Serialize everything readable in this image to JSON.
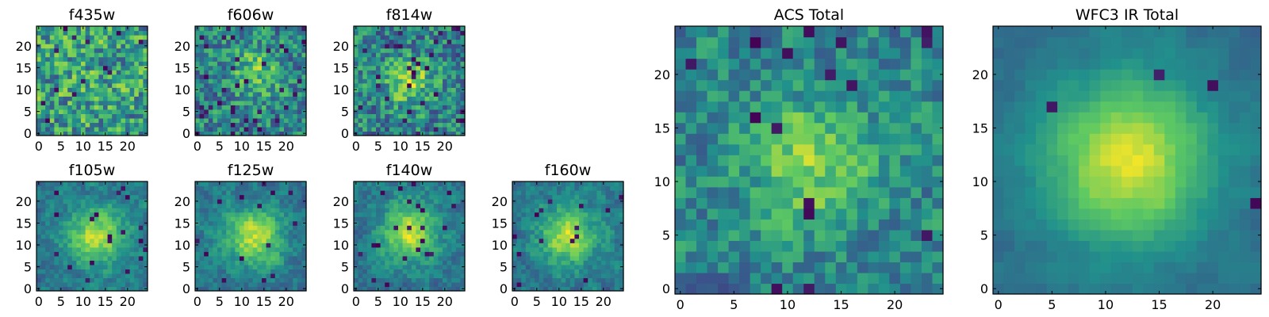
{
  "colormap": [
    "#440154",
    "#3b528b",
    "#21918c",
    "#5ec962",
    "#fde725"
  ],
  "chart_data": [
    {
      "type": "heatmap",
      "title": "f435w",
      "grid_size": 25,
      "seed": 11,
      "peak": [
        12,
        12
      ],
      "peak_strength": 0.05,
      "sigma": 5,
      "noise": 0.55,
      "base": 0.55,
      "outlier_rate": 0.03,
      "xticks": [
        {
          "value": 0,
          "label": "0"
        },
        {
          "value": 5,
          "label": "5"
        },
        {
          "value": 10,
          "label": "10"
        },
        {
          "value": 15,
          "label": "15"
        },
        {
          "value": 20,
          "label": "20"
        }
      ],
      "yticks": [
        {
          "value": 0,
          "label": "0"
        },
        {
          "value": 5,
          "label": "5"
        },
        {
          "value": 10,
          "label": "10"
        },
        {
          "value": 15,
          "label": "15"
        },
        {
          "value": 20,
          "label": "20"
        }
      ]
    },
    {
      "type": "heatmap",
      "title": "f606w",
      "grid_size": 25,
      "seed": 23,
      "peak": [
        13,
        14
      ],
      "peak_strength": 0.3,
      "sigma": 4,
      "noise": 0.5,
      "base": 0.45,
      "outlier_rate": 0.05,
      "xticks": [
        {
          "value": 0,
          "label": "0"
        },
        {
          "value": 5,
          "label": "5"
        },
        {
          "value": 10,
          "label": "10"
        },
        {
          "value": 15,
          "label": "15"
        },
        {
          "value": 20,
          "label": "20"
        }
      ],
      "yticks": [
        {
          "value": 0,
          "label": "0"
        },
        {
          "value": 5,
          "label": "5"
        },
        {
          "value": 10,
          "label": "10"
        },
        {
          "value": 15,
          "label": "15"
        },
        {
          "value": 20,
          "label": "20"
        }
      ]
    },
    {
      "type": "heatmap",
      "title": "f814w",
      "grid_size": 25,
      "seed": 37,
      "peak": [
        12,
        12
      ],
      "peak_strength": 0.4,
      "sigma": 3.5,
      "noise": 0.5,
      "base": 0.45,
      "outlier_rate": 0.05,
      "xticks": [
        {
          "value": 0,
          "label": "0"
        },
        {
          "value": 5,
          "label": "5"
        },
        {
          "value": 10,
          "label": "10"
        },
        {
          "value": 15,
          "label": "15"
        },
        {
          "value": 20,
          "label": "20"
        }
      ],
      "yticks": [
        {
          "value": 0,
          "label": "0"
        },
        {
          "value": 5,
          "label": "5"
        },
        {
          "value": 10,
          "label": "10"
        },
        {
          "value": 15,
          "label": "15"
        },
        {
          "value": 20,
          "label": "20"
        }
      ]
    },
    {
      "type": "heatmap",
      "title": "f105w",
      "grid_size": 25,
      "seed": 41,
      "peak": [
        13,
        12
      ],
      "peak_strength": 0.5,
      "sigma": 4.5,
      "noise": 0.3,
      "base": 0.4,
      "outlier_rate": 0.025,
      "xticks": [
        {
          "value": 0,
          "label": "0"
        },
        {
          "value": 5,
          "label": "5"
        },
        {
          "value": 10,
          "label": "10"
        },
        {
          "value": 15,
          "label": "15"
        },
        {
          "value": 20,
          "label": "20"
        }
      ],
      "yticks": [
        {
          "value": 0,
          "label": "0"
        },
        {
          "value": 5,
          "label": "5"
        },
        {
          "value": 10,
          "label": "10"
        },
        {
          "value": 15,
          "label": "15"
        },
        {
          "value": 20,
          "label": "20"
        }
      ]
    },
    {
      "type": "heatmap",
      "title": "f125w",
      "grid_size": 25,
      "seed": 53,
      "peak": [
        13,
        12
      ],
      "peak_strength": 0.5,
      "sigma": 4.5,
      "noise": 0.3,
      "base": 0.4,
      "outlier_rate": 0.025,
      "xticks": [
        {
          "value": 0,
          "label": "0"
        },
        {
          "value": 5,
          "label": "5"
        },
        {
          "value": 10,
          "label": "10"
        },
        {
          "value": 15,
          "label": "15"
        },
        {
          "value": 20,
          "label": "20"
        }
      ],
      "yticks": [
        {
          "value": 0,
          "label": "0"
        },
        {
          "value": 5,
          "label": "5"
        },
        {
          "value": 10,
          "label": "10"
        },
        {
          "value": 15,
          "label": "15"
        },
        {
          "value": 20,
          "label": "20"
        }
      ]
    },
    {
      "type": "heatmap",
      "title": "f140w",
      "grid_size": 25,
      "seed": 67,
      "peak": [
        12,
        13
      ],
      "peak_strength": 0.5,
      "sigma": 4.5,
      "noise": 0.3,
      "base": 0.4,
      "outlier_rate": 0.025,
      "xticks": [
        {
          "value": 0,
          "label": "0"
        },
        {
          "value": 5,
          "label": "5"
        },
        {
          "value": 10,
          "label": "10"
        },
        {
          "value": 15,
          "label": "15"
        },
        {
          "value": 20,
          "label": "20"
        }
      ],
      "yticks": [
        {
          "value": 0,
          "label": "0"
        },
        {
          "value": 5,
          "label": "5"
        },
        {
          "value": 10,
          "label": "10"
        },
        {
          "value": 15,
          "label": "15"
        },
        {
          "value": 20,
          "label": "20"
        }
      ]
    },
    {
      "type": "heatmap",
      "title": "f160w",
      "grid_size": 25,
      "seed": 79,
      "peak": [
        12,
        12
      ],
      "peak_strength": 0.5,
      "sigma": 4.5,
      "noise": 0.3,
      "base": 0.4,
      "outlier_rate": 0.03,
      "xticks": [
        {
          "value": 0,
          "label": "0"
        },
        {
          "value": 5,
          "label": "5"
        },
        {
          "value": 10,
          "label": "10"
        },
        {
          "value": 15,
          "label": "15"
        },
        {
          "value": 20,
          "label": "20"
        }
      ],
      "yticks": [
        {
          "value": 0,
          "label": "0"
        },
        {
          "value": 5,
          "label": "5"
        },
        {
          "value": 10,
          "label": "10"
        },
        {
          "value": 15,
          "label": "15"
        },
        {
          "value": 20,
          "label": "20"
        }
      ]
    },
    {
      "type": "heatmap",
      "title": "ACS Total",
      "grid_size": 25,
      "seed": 97,
      "peak": [
        12,
        12
      ],
      "peak_strength": 0.35,
      "sigma": 4,
      "noise": 0.4,
      "base": 0.45,
      "outlier_rate": 0.03,
      "xticks": [
        {
          "value": 0,
          "label": "0"
        },
        {
          "value": 5,
          "label": "5"
        },
        {
          "value": 10,
          "label": "10"
        },
        {
          "value": 15,
          "label": "15"
        },
        {
          "value": 20,
          "label": "20"
        }
      ],
      "yticks": [
        {
          "value": 0,
          "label": "0"
        },
        {
          "value": 5,
          "label": "5"
        },
        {
          "value": 10,
          "label": "10"
        },
        {
          "value": 15,
          "label": "15"
        },
        {
          "value": 20,
          "label": "20"
        }
      ]
    },
    {
      "type": "heatmap",
      "title": "WFC3 IR Total",
      "grid_size": 25,
      "seed": 103,
      "peak": [
        12,
        12
      ],
      "peak_strength": 0.6,
      "sigma": 5.5,
      "noise": 0.15,
      "base": 0.35,
      "outlier_rate": 0.015,
      "xticks": [
        {
          "value": 0,
          "label": "0"
        },
        {
          "value": 5,
          "label": "5"
        },
        {
          "value": 10,
          "label": "10"
        },
        {
          "value": 15,
          "label": "15"
        },
        {
          "value": 20,
          "label": "20"
        }
      ],
      "yticks": [
        {
          "value": 0,
          "label": "0"
        },
        {
          "value": 5,
          "label": "5"
        },
        {
          "value": 10,
          "label": "10"
        },
        {
          "value": 15,
          "label": "15"
        },
        {
          "value": 20,
          "label": "20"
        }
      ]
    }
  ]
}
